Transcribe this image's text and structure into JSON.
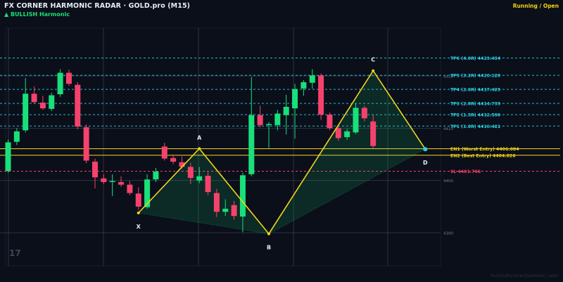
{
  "header": {
    "title": "FX CORNER HARMONIC RADAR  ·  GOLD.pro (M15)",
    "subtitle": "▲ BULLISH  Harmonic",
    "status": "Running / Open"
  },
  "watermark": "tv.com/fxcorner/harmonic_radar",
  "logo_text": "17",
  "colors": {
    "background": "#0b0f1a",
    "bull": "#19e07a",
    "bear": "#f5426c",
    "pattern": "#f1d41a",
    "tp": "#27d3e6",
    "sl": "#ff3d6a",
    "grid": "#3a4252"
  },
  "price_labels": [
    "4420",
    "4410",
    "4400",
    "4390"
  ],
  "levels": [
    {
      "label": "TP6 (4.0R)  4423.434",
      "price": 4423.434,
      "kind": "tp"
    },
    {
      "label": "TP5 (3.2R)  4420.120",
      "price": 4420.12,
      "kind": "tp"
    },
    {
      "label": "TP4 (2.6R)  4417.429",
      "price": 4417.429,
      "kind": "tp"
    },
    {
      "label": "TP3 (2.0R)  4414.739",
      "price": 4414.739,
      "kind": "tp"
    },
    {
      "label": "TP2 (1.5R)  4412.590",
      "price": 4412.59,
      "kind": "tp"
    },
    {
      "label": "TP1 (1.0R)  4410.421",
      "price": 4410.421,
      "kind": "tp"
    },
    {
      "label": "EN1 (Worst Entry)  4406.084",
      "price": 4406.084,
      "kind": "entry"
    },
    {
      "label": "EN2 (Best Entry)  4404.826",
      "price": 4404.826,
      "kind": "entry"
    },
    {
      "label": "SL  4401.766",
      "price": 4401.766,
      "kind": "sl"
    }
  ],
  "pattern": {
    "points": [
      {
        "name": "X",
        "bar": 15,
        "price": 4393.8
      },
      {
        "name": "A",
        "bar": 22,
        "price": 4406.1
      },
      {
        "name": "B",
        "bar": 30,
        "price": 4389.8
      },
      {
        "name": "C",
        "bar": 42,
        "price": 4421.0
      },
      {
        "name": "D",
        "bar": 48,
        "price": 4406.0
      }
    ]
  },
  "chart_data": {
    "type": "candlestick",
    "title": "GOLD.pro (M15)",
    "ylim": [
      4385,
      4431
    ],
    "candles": [
      {
        "o": 4401.8,
        "h": 4407.8,
        "l": 4401.5,
        "c": 4407.3
      },
      {
        "o": 4407.4,
        "h": 4410.0,
        "l": 4406.8,
        "c": 4409.4
      },
      {
        "o": 4409.6,
        "h": 4419.6,
        "l": 4409.2,
        "c": 4416.6
      },
      {
        "o": 4416.6,
        "h": 4418.0,
        "l": 4414.8,
        "c": 4415.0
      },
      {
        "o": 4414.9,
        "h": 4416.2,
        "l": 4413.5,
        "c": 4413.8
      },
      {
        "o": 4413.7,
        "h": 4416.8,
        "l": 4413.3,
        "c": 4416.3
      },
      {
        "o": 4416.5,
        "h": 4421.3,
        "l": 4416.0,
        "c": 4420.6
      },
      {
        "o": 4420.6,
        "h": 4421.2,
        "l": 4418.1,
        "c": 4418.5
      },
      {
        "o": 4418.3,
        "h": 4418.8,
        "l": 4409.8,
        "c": 4410.3
      },
      {
        "o": 4410.2,
        "h": 4410.7,
        "l": 4403.3,
        "c": 4403.8
      },
      {
        "o": 4403.6,
        "h": 4404.2,
        "l": 4398.5,
        "c": 4400.6
      },
      {
        "o": 4400.4,
        "h": 4401.2,
        "l": 4399.3,
        "c": 4399.7
      },
      {
        "o": 4399.7,
        "h": 4401.2,
        "l": 4397.0,
        "c": 4399.9
      },
      {
        "o": 4399.7,
        "h": 4400.8,
        "l": 4398.8,
        "c": 4399.2
      },
      {
        "o": 4399.2,
        "h": 4399.9,
        "l": 4397.2,
        "c": 4397.6
      },
      {
        "o": 4397.5,
        "h": 4398.7,
        "l": 4394.4,
        "c": 4395.0
      },
      {
        "o": 4394.9,
        "h": 4401.2,
        "l": 4394.6,
        "c": 4400.2
      },
      {
        "o": 4400.2,
        "h": 4402.4,
        "l": 4399.7,
        "c": 4401.7
      },
      {
        "o": 4406.5,
        "h": 4407.2,
        "l": 4403.8,
        "c": 4404.2
      },
      {
        "o": 4404.3,
        "h": 4405.0,
        "l": 4403.1,
        "c": 4403.6
      },
      {
        "o": 4403.5,
        "h": 4404.6,
        "l": 4402.3,
        "c": 4402.6
      },
      {
        "o": 4402.6,
        "h": 4403.4,
        "l": 4399.3,
        "c": 4400.5
      },
      {
        "o": 4400.0,
        "h": 4402.6,
        "l": 4399.5,
        "c": 4400.8
      },
      {
        "o": 4400.9,
        "h": 4401.6,
        "l": 4397.2,
        "c": 4397.8
      },
      {
        "o": 4397.6,
        "h": 4398.4,
        "l": 4393.0,
        "c": 4394.0
      },
      {
        "o": 4394.0,
        "h": 4396.4,
        "l": 4393.2,
        "c": 4394.6
      },
      {
        "o": 4395.3,
        "h": 4396.1,
        "l": 4392.5,
        "c": 4393.2
      },
      {
        "o": 4393.1,
        "h": 4401.5,
        "l": 4390.1,
        "c": 4401.0
      },
      {
        "o": 4401.2,
        "h": 4419.8,
        "l": 4400.8,
        "c": 4412.5
      },
      {
        "o": 4412.5,
        "h": 4414.3,
        "l": 4410.2,
        "c": 4410.6
      },
      {
        "o": 4410.6,
        "h": 4411.2,
        "l": 4406.2,
        "c": 4410.8
      },
      {
        "o": 4410.6,
        "h": 4413.5,
        "l": 4409.6,
        "c": 4412.8
      },
      {
        "o": 4412.5,
        "h": 4416.4,
        "l": 4408.8,
        "c": 4414.1
      },
      {
        "o": 4413.8,
        "h": 4418.5,
        "l": 4408.0,
        "c": 4417.5
      },
      {
        "o": 4417.6,
        "h": 4419.2,
        "l": 4416.2,
        "c": 4418.8
      },
      {
        "o": 4418.7,
        "h": 4421.3,
        "l": 4417.6,
        "c": 4420.1
      },
      {
        "o": 4420.1,
        "h": 4420.5,
        "l": 4411.6,
        "c": 4412.6
      },
      {
        "o": 4412.6,
        "h": 4413.0,
        "l": 4409.6,
        "c": 4410.0
      },
      {
        "o": 4410.0,
        "h": 4410.4,
        "l": 4407.6,
        "c": 4408.1
      },
      {
        "o": 4408.3,
        "h": 4409.9,
        "l": 4407.8,
        "c": 4409.4
      },
      {
        "o": 4409.2,
        "h": 4414.8,
        "l": 4408.9,
        "c": 4413.9
      },
      {
        "o": 4413.9,
        "h": 4414.3,
        "l": 4411.3,
        "c": 4411.9
      },
      {
        "o": 4411.3,
        "h": 4412.6,
        "l": 4406.1,
        "c": 4406.6
      }
    ]
  }
}
